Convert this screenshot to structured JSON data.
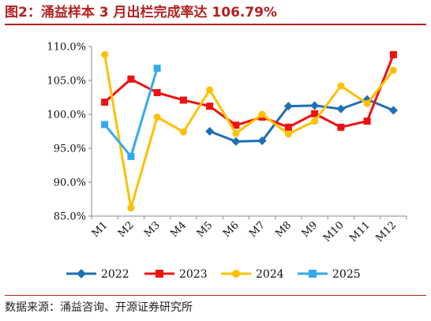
{
  "title": "图2：涌益样本 3 月出栏完成率达 106.79%",
  "source": "数据来源：涌益咨询、开源证券研究所",
  "chart_data": {
    "type": "line",
    "categories": [
      "M1",
      "M2",
      "M3",
      "M4",
      "M5",
      "M6",
      "M7",
      "M8",
      "M9",
      "M10",
      "M11",
      "M12"
    ],
    "ylim": [
      85,
      110
    ],
    "yticks": [
      "85.0%",
      "90.0%",
      "95.0%",
      "100.0%",
      "105.0%",
      "110.0%"
    ],
    "grid": false,
    "legend_position": "bottom",
    "series": [
      {
        "name": "2022",
        "color": "#1f6fb5",
        "marker": "diamond",
        "values": [
          null,
          null,
          null,
          null,
          97.5,
          96.0,
          96.1,
          101.2,
          101.3,
          100.8,
          102.2,
          100.6
        ]
      },
      {
        "name": "2023",
        "color": "#ee1111",
        "marker": "square",
        "values": [
          101.8,
          105.2,
          103.2,
          102.1,
          101.2,
          98.4,
          99.6,
          98.1,
          100.1,
          98.1,
          99.0,
          108.8
        ]
      },
      {
        "name": "2024",
        "color": "#ffc000",
        "marker": "circle",
        "values": [
          108.8,
          86.2,
          99.6,
          97.4,
          103.6,
          97.2,
          100.0,
          97.1,
          99.0,
          104.2,
          101.6,
          106.5
        ]
      },
      {
        "name": "2025",
        "color": "#33aaee",
        "marker": "square",
        "values": [
          98.5,
          93.8,
          106.8,
          null,
          null,
          null,
          null,
          null,
          null,
          null,
          null,
          null
        ]
      }
    ]
  }
}
